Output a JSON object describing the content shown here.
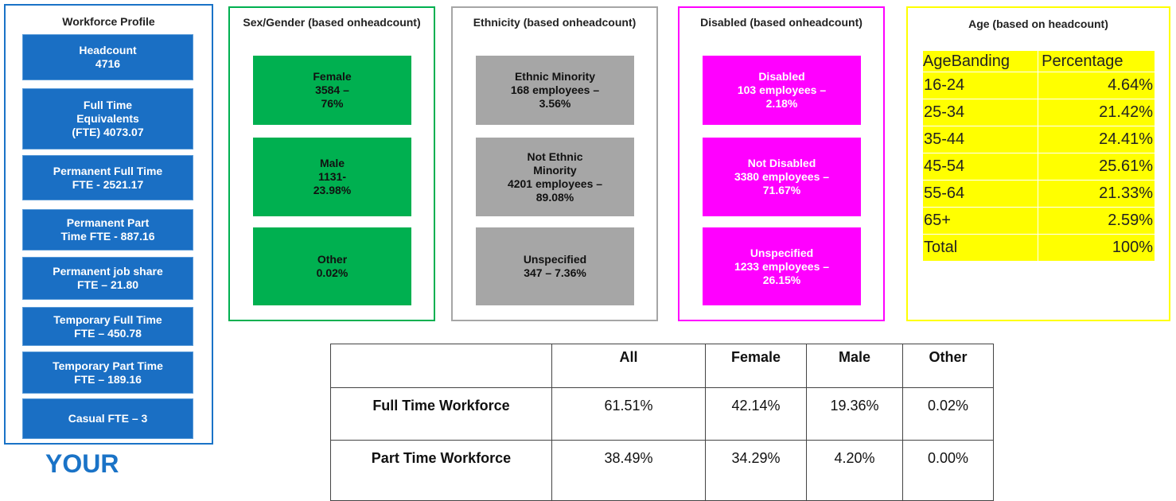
{
  "workforce": {
    "title": "Workforce Profile",
    "items": [
      {
        "lines": [
          "Headcount",
          "4716"
        ]
      },
      {
        "lines": [
          "Full Time",
          "Equivalents",
          "(FTE) 4073.07"
        ]
      },
      {
        "lines": [
          "Permanent Full Time",
          "FTE - 2521.17"
        ]
      },
      {
        "lines": [
          "Permanent Part",
          "Time FTE - 887.16"
        ]
      },
      {
        "lines": [
          "Permanent job share",
          "FTE – 21.80"
        ]
      },
      {
        "lines": [
          "Temporary Full Time",
          "FTE – 450.78"
        ]
      },
      {
        "lines": [
          "Temporary Part Time",
          "FTE – 189.16"
        ]
      },
      {
        "lines": [
          "Casual FTE – 3"
        ]
      }
    ]
  },
  "gender": {
    "title": [
      "Sex/Gender (based on",
      "headcount)"
    ],
    "items": [
      {
        "lines": [
          "Female",
          "3584 –",
          "76%"
        ]
      },
      {
        "lines": [
          "Male",
          "1131-",
          "23.98%"
        ]
      },
      {
        "lines": [
          "Other",
          "0.02%"
        ]
      }
    ]
  },
  "ethnicity": {
    "title": [
      "Ethnicity (based on",
      "headcount)"
    ],
    "items": [
      {
        "lines": [
          "Ethnic Minority",
          "168 employees –",
          "3.56%"
        ]
      },
      {
        "lines": [
          "Not Ethnic",
          "Minority",
          "4201 employees –",
          "89.08%"
        ]
      },
      {
        "lines": [
          "Unspecified",
          "347 – 7.36%"
        ]
      }
    ]
  },
  "disabled": {
    "title": [
      "Disabled (based on",
      "headcount)"
    ],
    "items": [
      {
        "lines": [
          "Disabled",
          "103 employees –",
          "2.18%"
        ]
      },
      {
        "lines": [
          "Not Disabled",
          "3380 employees –",
          "71.67%"
        ]
      },
      {
        "lines": [
          "Unspecified",
          "1233 employees –",
          "26.15%"
        ]
      }
    ]
  },
  "age": {
    "title": "Age (based on headcount)",
    "header": [
      [
        "Age",
        "Banding"
      ],
      "Percentage"
    ],
    "rows": [
      [
        "16-24",
        "4.64%"
      ],
      [
        "25-34",
        "21.42%"
      ],
      [
        "35-44",
        "24.41%"
      ],
      [
        "45-54",
        "25.61%"
      ],
      [
        "55-64",
        "21.33%"
      ],
      [
        "65+",
        "2.59%"
      ],
      [
        "Total",
        "100%"
      ]
    ]
  },
  "table": {
    "header": [
      "",
      "All",
      "Female",
      "Male",
      "Other"
    ],
    "rows": [
      [
        "Full Time Workforce",
        "61.51%",
        "42.14%",
        "19.36%",
        "0.02%"
      ],
      [
        "Part Time Workforce",
        "38.49%",
        "34.29%",
        "4.20%",
        "0.00%"
      ]
    ]
  },
  "footer": {
    "logo": "YOUR"
  }
}
